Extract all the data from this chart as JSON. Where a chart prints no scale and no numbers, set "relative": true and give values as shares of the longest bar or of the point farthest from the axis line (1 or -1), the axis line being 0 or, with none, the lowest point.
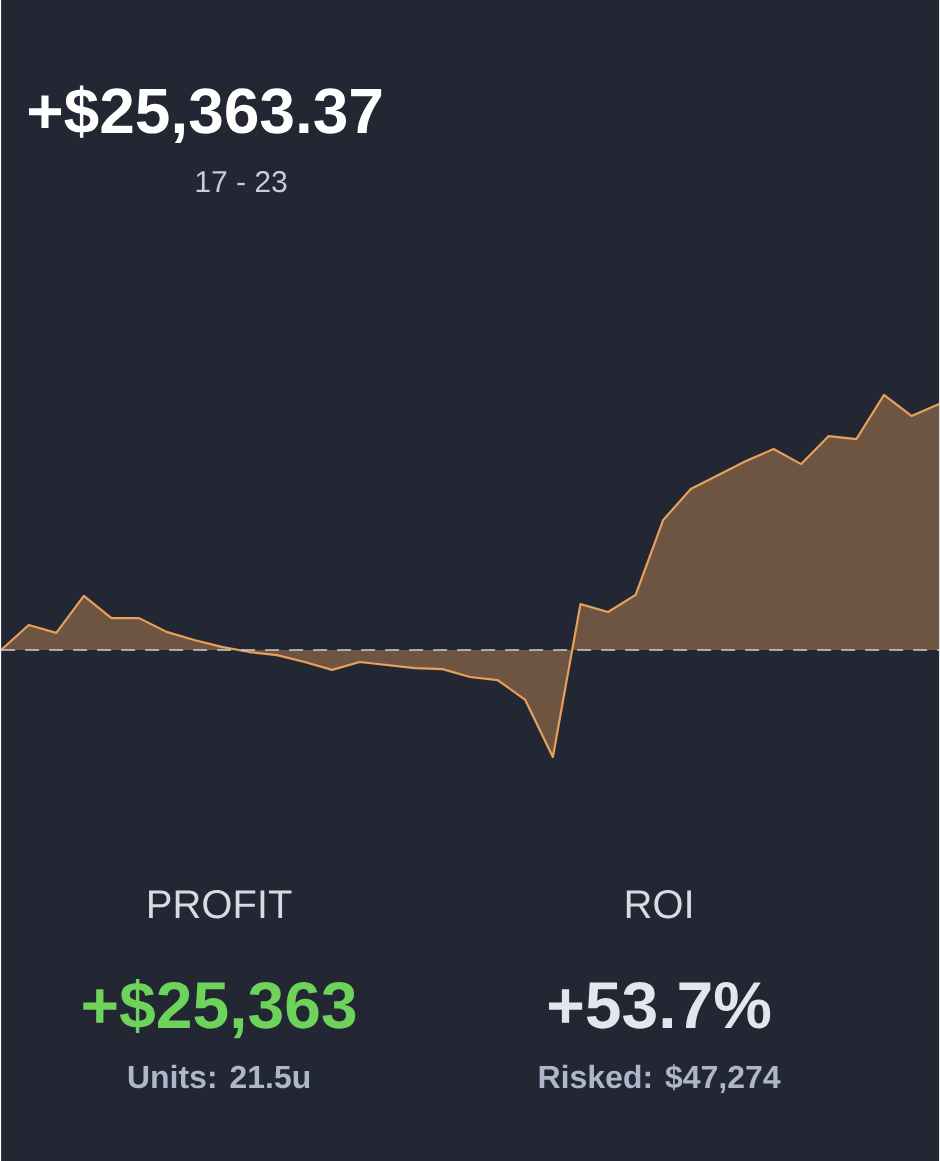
{
  "chart_data": {
    "type": "area",
    "title": "+$25,363.37",
    "subtitle": "17 - 23",
    "relative": true,
    "categories": [
      null,
      null,
      null,
      null,
      null,
      null,
      null,
      null,
      null,
      null,
      null,
      null,
      null,
      null,
      null,
      null,
      null,
      null,
      null,
      null,
      null,
      null,
      null,
      null,
      null,
      null,
      null,
      null,
      null,
      null,
      null,
      null,
      null,
      null,
      null
    ],
    "series": [
      {
        "color": "#e8a05a",
        "values": [
          0,
          0.098,
          0.067,
          0.212,
          0.125,
          0.125,
          0.071,
          0.039,
          0.012,
          -0.008,
          -0.02,
          -0.047,
          -0.078,
          -0.047,
          -0.059,
          -0.071,
          -0.075,
          -0.106,
          -0.118,
          -0.196,
          -0.42,
          0.18,
          0.149,
          0.216,
          0.51,
          0.631,
          0.686,
          0.741,
          0.788,
          0.729,
          0.839,
          0.827,
          1,
          0.918,
          0.965
        ]
      }
    ],
    "ref_lines": [
      {
        "axis": "y",
        "value": 0,
        "line_style": "dashed",
        "color": "#d0d0d0"
      }
    ],
    "annotations": [
      "PROFIT",
      "+$25,363",
      "Units: 21.5u",
      "ROI",
      "+53.7%",
      "Risked: $47,274"
    ]
  }
}
